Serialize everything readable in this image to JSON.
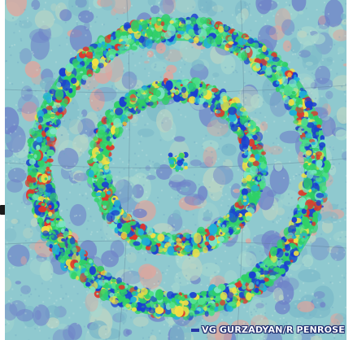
{
  "image": {
    "subject": "CMB sky map with concentric circles",
    "credit": "VG GURZADYAN/R PENROSE",
    "colors": {
      "background": "#8fc9cf",
      "blue_patch": "#6f82c8",
      "pink_patch": "#e2a49b",
      "ring_green": "#2fd066",
      "ring_blue": "#1b3fd1",
      "ring_red": "#e0362a",
      "ring_yellow": "#f1e043"
    }
  }
}
